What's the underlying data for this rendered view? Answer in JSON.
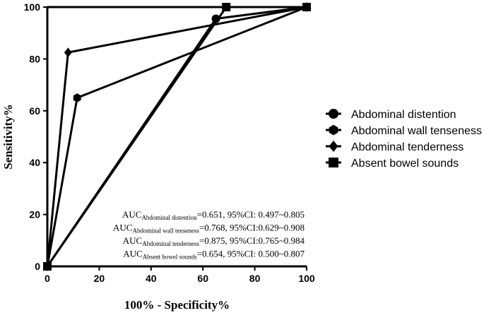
{
  "chart_data": {
    "type": "line",
    "xlabel": "100% - Specificity%",
    "ylabel": "Sensitivity%",
    "xlim": [
      0,
      100
    ],
    "ylim": [
      0,
      100
    ],
    "x_ticks": [
      "0",
      "20",
      "40",
      "60",
      "80",
      "100"
    ],
    "y_ticks": [
      "0",
      "20",
      "40",
      "60",
      "80",
      "100"
    ],
    "grid": false,
    "legend_position": "right",
    "series": [
      {
        "name": "Abdominal distention",
        "marker": "circle-icon",
        "x": [
          0,
          65,
          100
        ],
        "y": [
          0,
          95.5,
          100
        ]
      },
      {
        "name": "Abdominal wall tenseness",
        "marker": "hexagon-icon",
        "x": [
          0,
          11.5,
          100
        ],
        "y": [
          0,
          65,
          100
        ]
      },
      {
        "name": "Abdominal tenderness",
        "marker": "diamond-icon",
        "x": [
          0,
          8,
          100
        ],
        "y": [
          0,
          82.5,
          100
        ]
      },
      {
        "name": "Absent bowel sounds",
        "marker": "square-icon",
        "x": [
          0,
          69,
          100
        ],
        "y": [
          0,
          100,
          100
        ]
      }
    ],
    "annotations": [
      {
        "pre": "AUC",
        "sub": "Abdominal distention",
        "post": "=0.651, 95%CI: 0.497~0.805"
      },
      {
        "pre": "AUC",
        "sub": "Abdominal wall tenseness",
        "post": "=0.768, 95%CI:0.629~0.908"
      },
      {
        "pre": "AUC",
        "sub": "Abdominal tenderness",
        "post": "=0.875,  95%CI:0.765~0.984"
      },
      {
        "pre": "AUC",
        "sub": "Absent bowel sounds",
        "post": "=0.654, 95%CI: 0.500~0.807"
      }
    ],
    "line_color": "#000000"
  }
}
